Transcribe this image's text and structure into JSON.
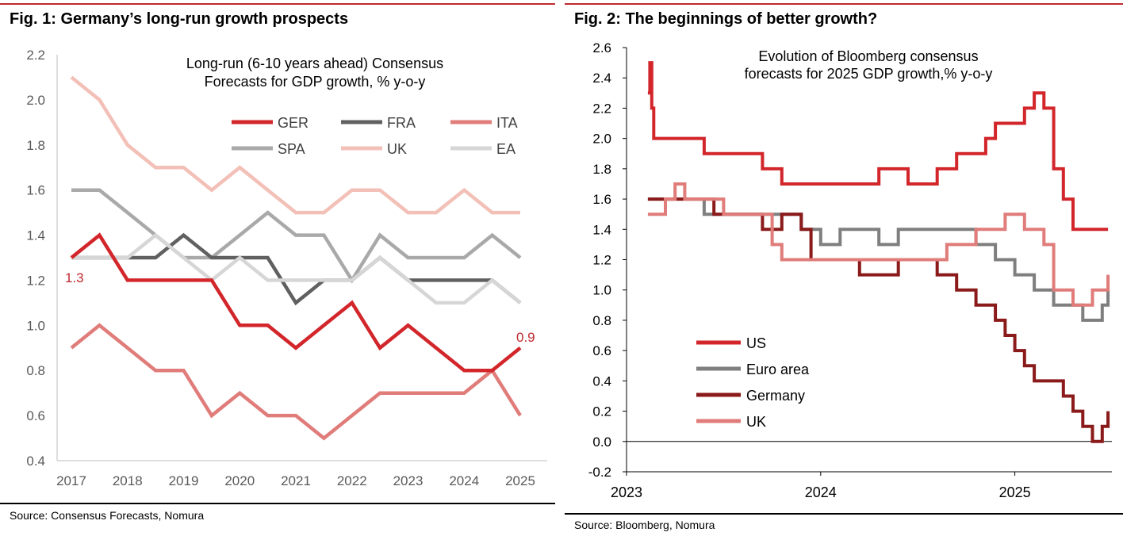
{
  "fig1": {
    "title": "Fig. 1: Germany’s long-run growth prospects",
    "source": "Source: Consensus Forecasts, Nomura",
    "chart_data": {
      "type": "line",
      "subtitle": [
        "Long-run (6-10 years ahead) Consensus",
        "Forecasts for GDP growth, % y-o-y"
      ],
      "x": [
        2017,
        2017.5,
        2018,
        2018.5,
        2019,
        2019.5,
        2020,
        2020.5,
        2021,
        2021.5,
        2022,
        2022.5,
        2023,
        2023.5,
        2024,
        2024.5,
        2025
      ],
      "xticks": [
        "2017",
        "2018",
        "2019",
        "2020",
        "2021",
        "2022",
        "2023",
        "2024",
        "2025"
      ],
      "yticks": [
        "0.4",
        "0.6",
        "0.8",
        "1.0",
        "1.2",
        "1.4",
        "1.6",
        "1.8",
        "2.0",
        "2.2"
      ],
      "ylim": [
        0.4,
        2.2
      ],
      "series": [
        {
          "name": "UK",
          "color": "#f3c0b8",
          "values": [
            2.1,
            2.0,
            1.8,
            1.7,
            1.7,
            1.6,
            1.7,
            1.6,
            1.5,
            1.5,
            1.6,
            1.6,
            1.5,
            1.5,
            1.6,
            1.5,
            1.5
          ]
        },
        {
          "name": "SPA",
          "color": "#a9a9a9",
          "values": [
            1.6,
            1.6,
            1.5,
            1.4,
            1.3,
            1.3,
            1.4,
            1.5,
            1.4,
            1.4,
            1.2,
            1.4,
            1.3,
            1.3,
            1.3,
            1.4,
            1.3
          ]
        },
        {
          "name": "FRA",
          "color": "#606060",
          "values": [
            1.3,
            1.3,
            1.3,
            1.3,
            1.4,
            1.3,
            1.3,
            1.3,
            1.1,
            1.2,
            1.2,
            1.3,
            1.2,
            1.2,
            1.2,
            1.2,
            1.1
          ]
        },
        {
          "name": "EA",
          "color": "#d6d6d6",
          "values": [
            1.3,
            1.3,
            1.3,
            1.4,
            1.3,
            1.2,
            1.3,
            1.2,
            1.2,
            1.2,
            1.2,
            1.3,
            1.2,
            1.1,
            1.1,
            1.2,
            1.1
          ]
        },
        {
          "name": "ITA",
          "color": "#e07c7a",
          "values": [
            0.9,
            1.0,
            0.9,
            0.8,
            0.8,
            0.6,
            0.7,
            0.6,
            0.6,
            0.5,
            0.6,
            0.7,
            0.7,
            0.7,
            0.7,
            0.8,
            0.6
          ]
        },
        {
          "name": "GER",
          "color": "#d2262b",
          "values": [
            1.3,
            1.4,
            1.2,
            1.2,
            1.2,
            1.2,
            1.0,
            1.0,
            0.9,
            1.0,
            1.1,
            0.9,
            1.0,
            0.9,
            0.8,
            0.8,
            0.9
          ]
        }
      ],
      "legend_order": [
        "GER",
        "FRA",
        "ITA",
        "SPA",
        "UK",
        "EA"
      ],
      "annotations": [
        {
          "text": "1.3",
          "series": "GER",
          "point": "first"
        },
        {
          "text": "0.9",
          "series": "GER",
          "point": "last"
        }
      ],
      "annotation_color": "#c0282d"
    }
  },
  "fig2": {
    "title": "Fig. 2: The beginnings of better growth?",
    "source": "Source: Bloomberg, Nomura",
    "chart_data": {
      "type": "line",
      "subtitle": [
        "Evolution of Bloomberg consensus",
        "forecasts for 2025 GDP growth,% y-o-y"
      ],
      "xlim": [
        2023.0,
        2025.5
      ],
      "xticks": [
        "2023",
        "2024",
        "2025"
      ],
      "yticks": [
        "-0.2",
        "0.0",
        "0.2",
        "0.4",
        "0.6",
        "0.8",
        "1.0",
        "1.2",
        "1.4",
        "1.6",
        "1.8",
        "2.0",
        "2.2",
        "2.4",
        "2.6"
      ],
      "ylim": [
        -0.2,
        2.6
      ],
      "legend_order": [
        "US",
        "Euro area",
        "Germany",
        "UK"
      ],
      "series": [
        {
          "name": "US",
          "color": "#d2262b",
          "points": [
            [
              2023.11,
              2.3
            ],
            [
              2023.12,
              2.5
            ],
            [
              2023.13,
              2.2
            ],
            [
              2023.14,
              2.0
            ],
            [
              2023.4,
              1.9
            ],
            [
              2023.7,
              1.8
            ],
            [
              2023.8,
              1.7
            ],
            [
              2024.3,
              1.8
            ],
            [
              2024.45,
              1.7
            ],
            [
              2024.6,
              1.8
            ],
            [
              2024.7,
              1.9
            ],
            [
              2024.85,
              2.0
            ],
            [
              2024.9,
              2.1
            ],
            [
              2025.05,
              2.2
            ],
            [
              2025.1,
              2.3
            ],
            [
              2025.15,
              2.2
            ],
            [
              2025.2,
              1.8
            ],
            [
              2025.25,
              1.6
            ],
            [
              2025.3,
              1.4
            ],
            [
              2025.4,
              1.4
            ],
            [
              2025.48,
              1.4
            ]
          ]
        },
        {
          "name": "Euro area",
          "color": "#7f7f7f",
          "points": [
            [
              2023.11,
              1.6
            ],
            [
              2023.2,
              1.6
            ],
            [
              2023.4,
              1.5
            ],
            [
              2023.6,
              1.5
            ],
            [
              2023.9,
              1.4
            ],
            [
              2024.0,
              1.3
            ],
            [
              2024.1,
              1.4
            ],
            [
              2024.2,
              1.4
            ],
            [
              2024.3,
              1.3
            ],
            [
              2024.4,
              1.4
            ],
            [
              2024.7,
              1.4
            ],
            [
              2024.8,
              1.3
            ],
            [
              2024.9,
              1.2
            ],
            [
              2025.0,
              1.1
            ],
            [
              2025.1,
              1.0
            ],
            [
              2025.2,
              0.9
            ],
            [
              2025.35,
              0.8
            ],
            [
              2025.45,
              0.9
            ],
            [
              2025.48,
              1.0
            ]
          ]
        },
        {
          "name": "Germany",
          "color": "#8b1a1a",
          "points": [
            [
              2023.11,
              1.6
            ],
            [
              2023.3,
              1.6
            ],
            [
              2023.45,
              1.5
            ],
            [
              2023.6,
              1.5
            ],
            [
              2023.7,
              1.4
            ],
            [
              2023.8,
              1.5
            ],
            [
              2023.9,
              1.4
            ],
            [
              2023.95,
              1.2
            ],
            [
              2024.1,
              1.2
            ],
            [
              2024.2,
              1.1
            ],
            [
              2024.4,
              1.2
            ],
            [
              2024.55,
              1.2
            ],
            [
              2024.6,
              1.1
            ],
            [
              2024.7,
              1.0
            ],
            [
              2024.8,
              0.9
            ],
            [
              2024.9,
              0.8
            ],
            [
              2024.95,
              0.7
            ],
            [
              2025.0,
              0.6
            ],
            [
              2025.05,
              0.5
            ],
            [
              2025.1,
              0.4
            ],
            [
              2025.25,
              0.3
            ],
            [
              2025.3,
              0.2
            ],
            [
              2025.35,
              0.1
            ],
            [
              2025.4,
              0.0
            ],
            [
              2025.45,
              0.1
            ],
            [
              2025.48,
              0.2
            ]
          ]
        },
        {
          "name": "UK",
          "color": "#e07c7a",
          "points": [
            [
              2023.11,
              1.5
            ],
            [
              2023.2,
              1.6
            ],
            [
              2023.25,
              1.7
            ],
            [
              2023.3,
              1.6
            ],
            [
              2023.4,
              1.6
            ],
            [
              2023.5,
              1.5
            ],
            [
              2023.7,
              1.5
            ],
            [
              2023.75,
              1.3
            ],
            [
              2023.8,
              1.2
            ],
            [
              2024.2,
              1.2
            ],
            [
              2024.5,
              1.2
            ],
            [
              2024.65,
              1.3
            ],
            [
              2024.8,
              1.4
            ],
            [
              2024.95,
              1.5
            ],
            [
              2025.0,
              1.5
            ],
            [
              2025.05,
              1.4
            ],
            [
              2025.15,
              1.3
            ],
            [
              2025.2,
              1.0
            ],
            [
              2025.3,
              0.9
            ],
            [
              2025.4,
              1.0
            ],
            [
              2025.45,
              1.0
            ],
            [
              2025.48,
              1.1
            ]
          ]
        }
      ]
    }
  }
}
